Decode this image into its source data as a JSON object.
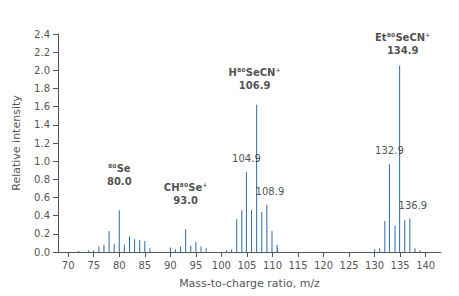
{
  "chart_data": {
    "type": "bar",
    "xlabel": "Mass-to-charge ratio, m/z",
    "ylabel": "Relative intensity",
    "color": "#2b6ca8",
    "grid": false,
    "x": [
      72.0,
      74.0,
      75.0,
      76.0,
      77.0,
      78.0,
      79.0,
      80.0,
      81.0,
      82.0,
      83.0,
      84.0,
      85.0,
      86.0,
      90.0,
      91.0,
      92.0,
      93.0,
      94.0,
      95.0,
      96.0,
      97.0,
      101.0,
      102.0,
      103.0,
      104.0,
      104.9,
      105.9,
      106.9,
      107.9,
      108.9,
      109.9,
      110.9,
      111.0,
      130.0,
      131.0,
      132.0,
      132.9,
      134.0,
      134.9,
      135.9,
      136.9,
      137.9,
      138.9
    ],
    "values": [
      0.01,
      0.02,
      0.02,
      0.06,
      0.08,
      0.23,
      0.09,
      0.46,
      0.08,
      0.17,
      0.14,
      0.13,
      0.12,
      0.04,
      0.05,
      0.03,
      0.06,
      0.25,
      0.07,
      0.11,
      0.06,
      0.04,
      0.02,
      0.03,
      0.36,
      0.46,
      0.88,
      0.46,
      1.62,
      0.44,
      0.52,
      0.23,
      0.08,
      0.04,
      0.03,
      0.04,
      0.34,
      0.97,
      0.29,
      2.05,
      0.35,
      0.37,
      0.04,
      0.02
    ],
    "xlim": [
      68,
      143
    ],
    "ylim": [
      0,
      2.4
    ],
    "xticks": [
      70,
      75,
      80,
      85,
      90,
      95,
      100,
      105,
      110,
      115,
      120,
      125,
      130,
      135,
      140
    ],
    "yticks": [
      {
        "value": 0.0,
        "label": "0.0"
      },
      0.2,
      0.4,
      0.6,
      0.8,
      {
        "value": 1.0,
        "label": "1.0"
      },
      1.2,
      1.4,
      1.6,
      1.8,
      {
        "value": 2.0,
        "label": "2.0"
      },
      2.2,
      2.4
    ],
    "annotations": [
      {
        "lines": [
          "⁸⁰Se",
          "80.0"
        ],
        "bold": true,
        "x": 80.0,
        "y": 0.7
      },
      {
        "lines": [
          "CH⁸⁰Se⁺",
          "93.0"
        ],
        "bold": true,
        "x": 93.0,
        "y": 0.5
      },
      {
        "lines": [
          "104.9"
        ],
        "bold": false,
        "x": 104.9,
        "y": 0.96
      },
      {
        "lines": [
          "H⁸⁰SeCN⁺",
          "106.9"
        ],
        "bold": true,
        "x": 106.5,
        "y": 1.76
      },
      {
        "lines": [
          "108.9"
        ],
        "bold": false,
        "x": 109.5,
        "y": 0.6
      },
      {
        "lines": [
          "132.9"
        ],
        "bold": false,
        "x": 132.9,
        "y": 1.05
      },
      {
        "lines": [
          "Et⁸⁰SeCN⁺",
          "134.9"
        ],
        "bold": true,
        "x": 135.5,
        "y": 2.15
      },
      {
        "lines": [
          "136.9"
        ],
        "bold": false,
        "x": 137.5,
        "y": 0.44
      }
    ]
  }
}
